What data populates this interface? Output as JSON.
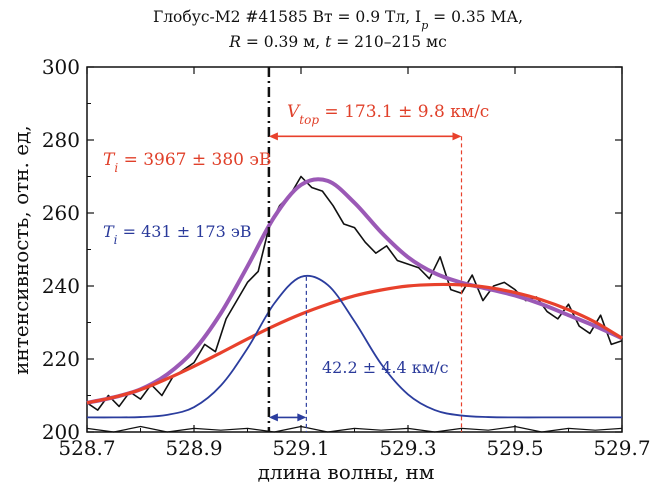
{
  "chart_data": {
    "type": "line",
    "title_line1": "Глобус-М2 #41585 Вт = 0.9 Тл, I",
    "title_line1_sub": "p",
    "title_line1_end": " = 0.35 МА,",
    "title_line2_R": "R",
    "title_line2_mid": " = 0.39 м, ",
    "title_line2_t": "t",
    "title_line2_end": " = 210–215 мс",
    "xlabel": "длина волны, нм",
    "ylabel": "интенсивность, отн. ед,",
    "xlim": [
      528.7,
      529.7
    ],
    "ylim": [
      200,
      300
    ],
    "x_ticks": [
      "528.7",
      "528.9",
      "529.1",
      "529.3",
      "529.5",
      "529.7"
    ],
    "y_ticks": [
      "200",
      "220",
      "240",
      "260",
      "280",
      "300"
    ],
    "reference_line_x": 529.04,
    "annotations": {
      "Ti_hot_var": "T",
      "Ti_hot_sub": "i",
      "Ti_hot_value": " = 3967 ± 380 эВ",
      "Ti_cold_var": "T",
      "Ti_cold_sub": "i",
      "Ti_cold_value": " = 431 ± 173 эВ",
      "vtor_var": "V",
      "vtor_sub": "top",
      "vtor_value": " = 173.1 ± 9.8 км/с",
      "v_cold": "42.2 ± 4.4 км/с"
    },
    "series": [
      {
        "key": "measured",
        "color": "#111111",
        "note": "noisy experimental spectrum",
        "x": [
          528.7,
          528.72,
          528.74,
          528.76,
          528.78,
          528.8,
          528.82,
          528.84,
          528.86,
          528.88,
          528.9,
          528.92,
          528.94,
          528.96,
          528.98,
          529.0,
          529.02,
          529.04,
          529.06,
          529.08,
          529.1,
          529.12,
          529.14,
          529.16,
          529.18,
          529.2,
          529.22,
          529.24,
          529.26,
          529.28,
          529.3,
          529.32,
          529.34,
          529.36,
          529.38,
          529.4,
          529.42,
          529.44,
          529.46,
          529.48,
          529.5,
          529.52,
          529.54,
          529.56,
          529.58,
          529.6,
          529.62,
          529.64,
          529.66,
          529.68,
          529.7
        ],
        "y": [
          208,
          206,
          210,
          207,
          211,
          209,
          213,
          210,
          215,
          217,
          219,
          224,
          222,
          231,
          236,
          241,
          244,
          256,
          262,
          265,
          270,
          267,
          266,
          262,
          257,
          256,
          252,
          249,
          251,
          247,
          246,
          245,
          242,
          248,
          239,
          238,
          243,
          236,
          240,
          241,
          239,
          236,
          237,
          233,
          231,
          235,
          229,
          227,
          232,
          224,
          225
        ]
      },
      {
        "key": "background_noise",
        "color": "#111111",
        "x": [
          528.7,
          528.75,
          528.8,
          528.85,
          528.9,
          528.95,
          529.0,
          529.05,
          529.1,
          529.15,
          529.2,
          529.25,
          529.3,
          529.35,
          529.4,
          529.45,
          529.5,
          529.55,
          529.6,
          529.65,
          529.7
        ],
        "y": [
          201,
          200,
          201.5,
          200,
          201,
          200.5,
          201,
          200,
          201.5,
          200,
          201,
          200.5,
          201,
          200,
          201,
          200.5,
          201.5,
          200,
          201,
          200.5,
          201
        ]
      },
      {
        "key": "total_fit",
        "color": "#9b59b6",
        "x": [
          528.7,
          528.75,
          528.8,
          528.85,
          528.9,
          528.95,
          529.0,
          529.05,
          529.1,
          529.15,
          529.2,
          529.25,
          529.3,
          529.35,
          529.4,
          529.45,
          529.5,
          529.55,
          529.6,
          529.65,
          529.7
        ],
        "y": [
          208,
          209.5,
          211.7,
          215.8,
          222.4,
          232.5,
          245.4,
          258.9,
          267.7,
          268.8,
          262.8,
          254.7,
          247.9,
          243.5,
          240.9,
          239.2,
          237.4,
          235,
          232,
          229,
          225.7
        ]
      },
      {
        "key": "cold_component",
        "color": "#2b3d9e",
        "x": [
          528.7,
          528.75,
          528.8,
          528.85,
          528.9,
          528.95,
          529.0,
          529.05,
          529.1,
          529.15,
          529.2,
          529.25,
          529.3,
          529.35,
          529.4,
          529.45,
          529.5,
          529.55,
          529.6,
          529.65,
          529.7
        ],
        "y": [
          204,
          204,
          204.1,
          204.7,
          206.8,
          212.7,
          222.9,
          235.2,
          242.5,
          240.3,
          230.3,
          218.6,
          210.3,
          206,
          204.5,
          204.1,
          204,
          204,
          204,
          204,
          204
        ]
      },
      {
        "key": "hot_component",
        "color": "#e8412c",
        "x": [
          528.7,
          528.75,
          528.8,
          528.85,
          528.9,
          528.95,
          529.0,
          529.05,
          529.1,
          529.15,
          529.2,
          529.25,
          529.3,
          529.35,
          529.4,
          529.45,
          529.5,
          529.55,
          529.6,
          529.65,
          529.7
        ],
        "y": [
          208,
          209.5,
          211.6,
          214.6,
          218,
          221.7,
          225.5,
          229.1,
          232.3,
          235,
          237.3,
          238.9,
          240,
          240.4,
          240.3,
          239.6,
          238.2,
          236.2,
          233.5,
          230.1,
          225.7
        ]
      }
    ],
    "markers": {
      "cold_peak_x": 529.11,
      "hot_peak_x": 529.4,
      "cold_peak_y": 242.5,
      "hot_peak_y": 240.2,
      "vtor_arrow_y": 281,
      "vcold_arrow_y": 204
    }
  }
}
